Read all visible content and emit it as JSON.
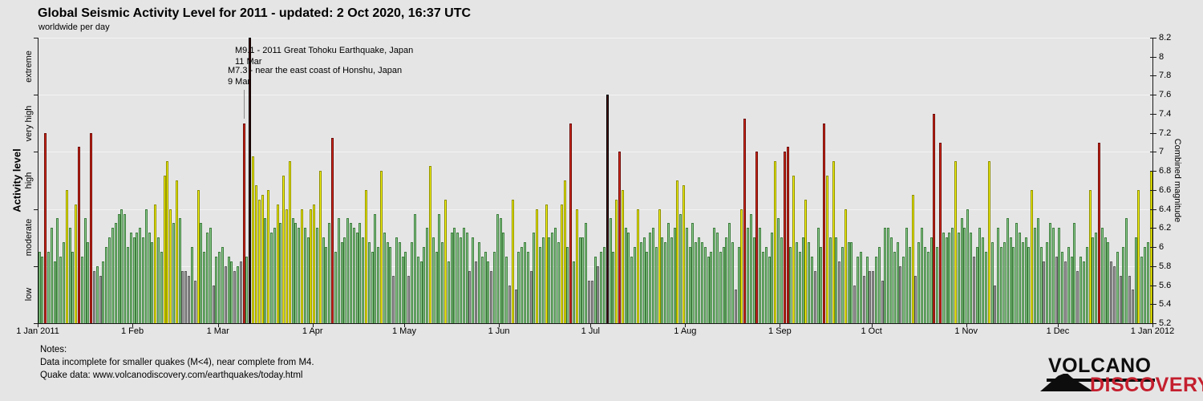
{
  "header": {
    "title": "Global Seismic Activity Level for 2011 - updated:  2 Oct 2020, 16:37 UTC",
    "subtitle": "worldwide per day"
  },
  "annotations": {
    "tohoku_title": "M9.1 - 2011 Great Tohoku Earthquake, Japan",
    "tohoku_date": "11 Mar",
    "honshu_title": "M7.3 - near the east coast of Honshu, Japan",
    "honshu_date": "9 Mar"
  },
  "notes": {
    "heading": "Notes:",
    "line1": "Data incomplete for smaller quakes (M<4), near complete from M4.",
    "line2": "Quake data: www.volcanodiscovery.com/earthquakes/today.html"
  },
  "logo": {
    "top": "VOLCANO",
    "bottom": "DISCOVERY",
    "accent_color": "#c41f2e"
  },
  "chart_data": {
    "type": "bar",
    "title": "Global Seismic Activity Level for 2011",
    "ylabel_left": "Activity level",
    "ylabel_right": "Combined magnitude",
    "ylim": [
      5.2,
      8.2
    ],
    "grid": "band boundaries only",
    "y_ticks_right": [
      "5.2",
      "5.4",
      "5.6",
      "5.8",
      "6",
      "6.2",
      "6.4",
      "6.6",
      "6.8",
      "7",
      "7.2",
      "7.4",
      "7.6",
      "7.8",
      "8",
      "8.2"
    ],
    "band_boundaries": [
      5.8,
      6.4,
      7.0,
      7.6
    ],
    "activity_bands": [
      "low",
      "moderate",
      "high",
      "very high",
      "extreme"
    ],
    "x_ticks": [
      "1 Jan 2011",
      "1 Feb",
      "1 Mar",
      "1 Apr",
      "1 May",
      "1 Jun",
      "1 Jul",
      "1 Aug",
      "1 Sep",
      "1 Oct",
      "1 Nov",
      "1 Dec",
      "1 Jan 2012"
    ],
    "color_legend": {
      "a": {
        "level": "low",
        "fill": "#9e9e9e",
        "edge": "#5f5f5f"
      },
      "g": {
        "level": "moderate",
        "fill": "#8ecc8e",
        "edge": "#3e7d3e"
      },
      "y": {
        "level": "high",
        "fill": "#f6f600",
        "edge": "#8f8f00"
      },
      "r": {
        "level": "very high",
        "fill": "#d42a1c",
        "edge": "#6f0b06"
      },
      "d": {
        "level": "extreme",
        "fill": "#4d0403",
        "edge": "#000000"
      }
    },
    "months": [
      {
        "name": "Jan",
        "colors": "ggrggggggyggyrgggragagggggggggg",
        "values": [
          5.95,
          5.9,
          7.2,
          5.95,
          6.2,
          5.85,
          6.3,
          5.9,
          6.05,
          6.6,
          6.2,
          5.95,
          6.45,
          7.05,
          5.9,
          6.3,
          6.05,
          7.2,
          5.75,
          5.8,
          5.7,
          5.85,
          6.0,
          6.1,
          6.2,
          6.25,
          6.35,
          6.4,
          6.35,
          6.0,
          6.15
        ]
      },
      {
        "name": "Feb",
        "colors": "gggggggyggyyygygaaagayggggag",
        "values": [
          6.1,
          6.15,
          6.2,
          6.1,
          6.4,
          6.15,
          6.05,
          6.45,
          6.1,
          5.95,
          6.75,
          6.9,
          6.4,
          6.25,
          6.7,
          6.3,
          5.75,
          5.75,
          5.7,
          6.0,
          5.65,
          6.6,
          6.25,
          5.95,
          6.15,
          6.2,
          5.6,
          5.9
        ]
      },
      {
        "name": "Mar",
        "colors": "ggaggagargdyyyygyggygyyygggyggy",
        "values": [
          5.95,
          6.0,
          5.8,
          5.9,
          5.85,
          5.75,
          5.8,
          5.85,
          7.3,
          5.9,
          9.1,
          6.95,
          6.65,
          6.5,
          6.55,
          6.3,
          6.6,
          6.15,
          6.2,
          6.45,
          6.25,
          6.75,
          6.4,
          6.9,
          6.3,
          6.25,
          6.2,
          6.4,
          6.2,
          6.1,
          6.4
        ]
      },
      {
        "name": "Apr",
        "colors": "ygygggrggggggggggyggggygggaggg",
        "values": [
          6.45,
          6.2,
          6.8,
          6.1,
          6.0,
          6.25,
          7.15,
          5.95,
          6.3,
          6.05,
          6.1,
          6.3,
          6.25,
          6.2,
          6.15,
          6.25,
          6.1,
          6.6,
          6.05,
          5.95,
          6.35,
          6.0,
          6.8,
          6.15,
          6.05,
          6.0,
          5.7,
          6.1,
          6.05,
          5.9
        ]
      },
      {
        "name": "May",
        "colors": "gaggggggyggggygggggggagaggggagg",
        "values": [
          5.95,
          5.7,
          6.05,
          6.35,
          5.9,
          5.85,
          6.0,
          6.2,
          6.85,
          6.1,
          5.95,
          6.35,
          6.05,
          6.5,
          5.85,
          6.15,
          6.2,
          6.15,
          6.1,
          6.2,
          6.15,
          5.75,
          6.1,
          5.85,
          6.05,
          5.9,
          5.95,
          5.85,
          5.75,
          5.95,
          6.35
        ]
      },
      {
        "name": "Jun",
        "colors": "gggayaggggagyggyggggyygrgyggga",
        "values": [
          6.3,
          6.15,
          5.9,
          5.6,
          6.5,
          5.55,
          5.95,
          6.0,
          6.05,
          5.95,
          5.75,
          6.15,
          6.4,
          6.0,
          6.1,
          6.45,
          6.1,
          6.15,
          6.2,
          6.05,
          6.45,
          6.7,
          6.0,
          7.3,
          5.85,
          6.4,
          6.1,
          6.1,
          6.25,
          5.65
        ]
      },
      {
        "name": "Jul",
        "colors": "agaggdggyryggggyggggggygggggygy",
        "values": [
          5.65,
          5.9,
          5.8,
          5.95,
          6.0,
          7.6,
          6.3,
          5.95,
          6.5,
          7.0,
          6.6,
          6.2,
          6.15,
          5.9,
          6.0,
          6.4,
          6.05,
          6.1,
          5.95,
          6.15,
          6.2,
          6.0,
          6.4,
          6.1,
          6.05,
          6.25,
          6.1,
          6.2,
          6.7,
          6.35,
          6.65
        ]
      },
      {
        "name": "Aug",
        "colors": "ggggggggggggggggagyrgggrgggggyg",
        "values": [
          6.2,
          6.0,
          6.25,
          6.05,
          6.1,
          6.05,
          6.0,
          5.9,
          5.95,
          6.2,
          6.15,
          5.95,
          6.0,
          6.1,
          6.25,
          6.05,
          5.55,
          6.0,
          6.4,
          7.35,
          6.2,
          6.35,
          6.1,
          7.0,
          6.2,
          5.95,
          6.0,
          5.9,
          6.15,
          6.9,
          6.3
        ]
      },
      {
        "name": "Sep",
        "colors": "grrgygggyggaggrygygagyggaggaga",
        "values": [
          6.1,
          7.0,
          7.05,
          6.0,
          6.75,
          6.05,
          5.95,
          6.1,
          6.5,
          6.05,
          5.9,
          5.75,
          6.2,
          6.0,
          7.3,
          6.75,
          6.1,
          6.9,
          6.1,
          5.85,
          6.0,
          6.4,
          6.05,
          6.05,
          5.6,
          5.9,
          5.95,
          5.7,
          5.9,
          5.75
        ]
      },
      {
        "name": "Oct",
        "colors": "aggagggggagggyagggggrgrggggyggg",
        "values": [
          5.75,
          5.9,
          6.0,
          5.65,
          6.2,
          6.2,
          6.1,
          5.95,
          6.05,
          5.8,
          5.9,
          6.2,
          6.0,
          6.55,
          5.7,
          6.05,
          6.2,
          6.0,
          5.95,
          6.1,
          7.4,
          6.0,
          7.1,
          6.15,
          6.1,
          6.15,
          6.2,
          6.9,
          6.15,
          6.3,
          6.2
        ]
      },
      {
        "name": "Nov",
        "colors": "ggaggggygagggggggggggygggaggga",
        "values": [
          6.4,
          6.15,
          5.9,
          6.0,
          6.2,
          6.1,
          5.95,
          6.9,
          6.05,
          5.6,
          6.2,
          6.0,
          6.05,
          6.3,
          6.1,
          6.0,
          6.25,
          6.15,
          6.05,
          6.1,
          6.0,
          6.6,
          6.2,
          6.3,
          6.0,
          5.85,
          6.05,
          6.25,
          6.2,
          5.9
        ]
      },
      {
        "name": "Dec",
        "colors": "ggagggagggyggrgggaagaggaagygggy",
        "values": [
          6.2,
          5.95,
          5.85,
          6.0,
          5.9,
          6.25,
          5.75,
          5.9,
          5.85,
          6.0,
          6.6,
          6.1,
          6.15,
          7.1,
          6.2,
          6.1,
          6.05,
          5.85,
          5.8,
          5.95,
          5.7,
          6.0,
          6.3,
          5.7,
          5.55,
          6.1,
          6.6,
          5.9,
          6.0,
          6.05,
          6.8
        ]
      }
    ]
  }
}
